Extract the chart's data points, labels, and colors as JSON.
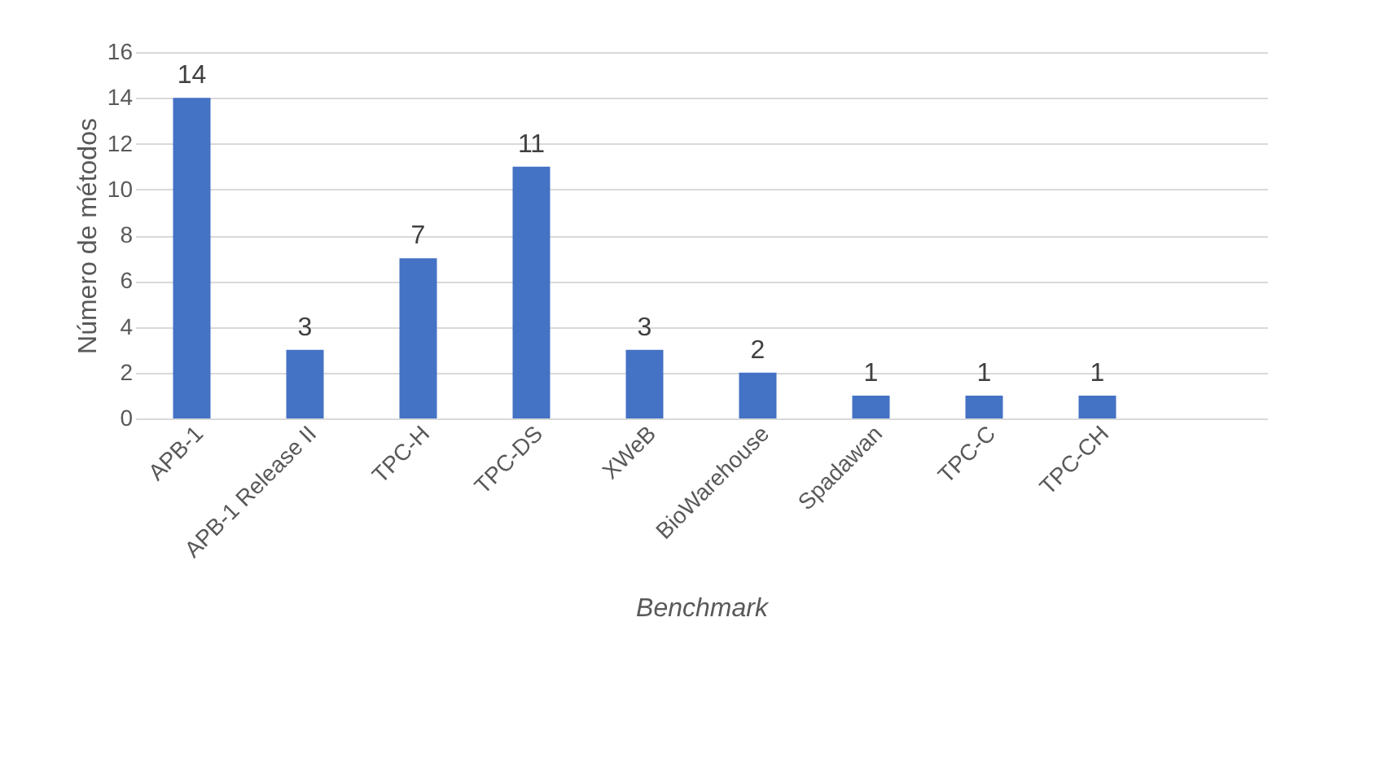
{
  "chart_data": {
    "type": "bar",
    "xlabel": "Benchmark",
    "ylabel": "Número de métodos",
    "categories": [
      "APB-1",
      "APB-1 Release II",
      "TPC-H",
      "TPC-DS",
      "XWeB",
      "BioWarehouse",
      "Spadawan",
      "TPC-C",
      "TPC-CH",
      null
    ],
    "values": [
      14,
      3,
      7,
      11,
      3,
      2,
      1,
      1,
      1,
      null
    ],
    "color": "#4472c4",
    "ylim": [
      0,
      16
    ],
    "yticks": [
      0,
      2,
      4,
      6,
      8,
      10,
      12,
      14,
      16
    ],
    "grid": "y",
    "data_labels": true
  }
}
